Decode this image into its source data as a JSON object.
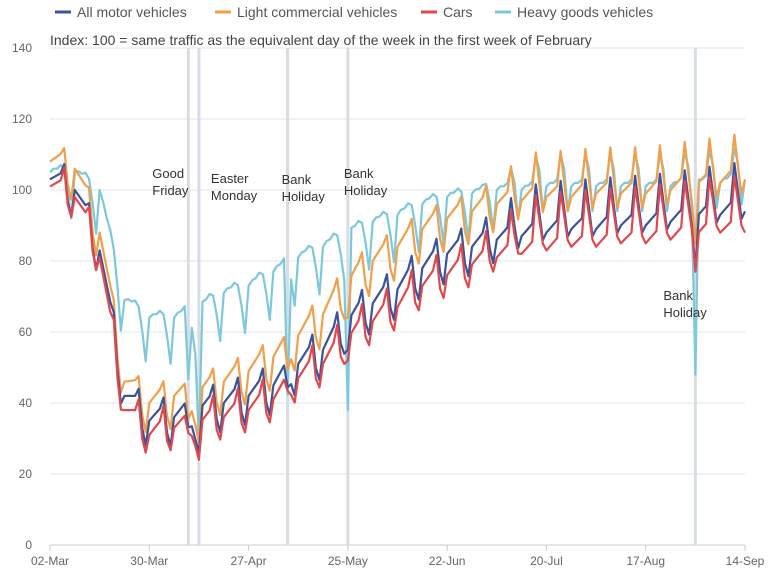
{
  "chart_data": {
    "type": "line",
    "subtitle": "Index: 100 = same traffic as the equivalent day of the week in the first week of February",
    "ylim": [
      0,
      140
    ],
    "yticks": [
      0,
      20,
      40,
      60,
      80,
      100,
      120,
      140
    ],
    "x_start": "2020-03-02",
    "x_end": "2020-09-14",
    "xticks": [
      {
        "date": "2020-03-02",
        "label": "02-Mar"
      },
      {
        "date": "2020-03-30",
        "label": "30-Mar"
      },
      {
        "date": "2020-04-27",
        "label": "27-Apr"
      },
      {
        "date": "2020-05-25",
        "label": "25-May"
      },
      {
        "date": "2020-06-22",
        "label": "22-Jun"
      },
      {
        "date": "2020-07-20",
        "label": "20-Jul"
      },
      {
        "date": "2020-08-17",
        "label": "17-Aug"
      },
      {
        "date": "2020-09-14",
        "label": "14-Sep"
      }
    ],
    "grid": true,
    "legend": "top",
    "annotations": [
      {
        "date": "2020-04-10",
        "lines": [
          "Good",
          "Friday"
        ]
      },
      {
        "date": "2020-04-13",
        "lines": [
          "Easter",
          "Monday"
        ]
      },
      {
        "date": "2020-05-08",
        "lines": [
          "Bank",
          "Holiday"
        ]
      },
      {
        "date": "2020-05-25",
        "lines": [
          "Bank",
          "Holiday"
        ]
      },
      {
        "date": "2020-08-31",
        "lines": [
          "Bank",
          "Holiday"
        ]
      }
    ],
    "weekly": {
      "start": "2020-03-02",
      "dates": [
        "2020-03-02",
        "2020-03-09",
        "2020-03-16",
        "2020-03-23",
        "2020-03-30",
        "2020-04-06",
        "2020-04-13",
        "2020-04-20",
        "2020-04-27",
        "2020-05-04",
        "2020-05-11",
        "2020-05-18",
        "2020-05-25",
        "2020-06-01",
        "2020-06-08",
        "2020-06-15",
        "2020-06-22",
        "2020-06-29",
        "2020-07-06",
        "2020-07-13",
        "2020-07-20",
        "2020-07-27",
        "2020-08-03",
        "2020-08-10",
        "2020-08-17",
        "2020-08-24",
        "2020-08-31",
        "2020-09-07",
        "2020-09-14"
      ]
    },
    "weekly_levels": {
      "All motor vehicles": [
        103,
        100,
        83,
        42,
        35,
        36,
        38,
        40,
        42,
        45,
        51,
        55,
        63,
        68,
        72,
        78,
        82,
        84,
        86,
        87,
        88,
        89,
        89,
        90,
        90,
        91,
        92,
        93,
        94
      ],
      "Light commercial vehicles": [
        108,
        106,
        88,
        46,
        40,
        42,
        43,
        46,
        49,
        53,
        59,
        65,
        74,
        80,
        84,
        89,
        92,
        94,
        96,
        97,
        98,
        98,
        99,
        99,
        99,
        100,
        101,
        102,
        103
      ],
      "Cars": [
        101,
        98,
        81,
        38,
        31,
        33,
        34,
        36,
        38,
        41,
        47,
        51,
        58,
        63,
        67,
        73,
        76,
        79,
        81,
        82,
        83,
        84,
        84,
        85,
        85,
        86,
        87,
        88,
        88
      ],
      "Heavy goods vehicles": [
        104,
        104,
        99,
        68,
        63,
        63,
        66,
        70,
        72,
        76,
        80,
        83,
        87,
        90,
        92,
        95,
        97,
        98,
        99,
        99,
        100,
        100,
        100,
        100,
        100,
        100,
        101,
        101,
        102
      ]
    },
    "weekday_pattern": {
      "All motor vehicles": [
        0,
        1,
        2,
        3,
        6,
        -4,
        -8
      ],
      "Light commercial vehicles": [
        0,
        1,
        2,
        3,
        5,
        -5,
        -9
      ],
      "Cars": [
        0,
        1,
        2,
        3,
        7,
        -3,
        -6
      ],
      "Heavy goods vehicles": [
        1,
        2,
        2,
        3,
        2,
        -4,
        -12
      ]
    },
    "weekend_boost_summer": {
      "All motor vehicles": [
        0,
        0,
        0,
        0,
        8,
        10,
        6
      ],
      "Light commercial vehicles": [
        0,
        0,
        0,
        0,
        8,
        9,
        5
      ],
      "Cars": [
        0,
        0,
        0,
        0,
        9,
        12,
        8
      ],
      "Heavy goods vehicles": [
        0,
        0,
        0,
        0,
        8,
        10,
        6
      ]
    },
    "holiday_dips": {
      "2020-04-10": {
        "All motor vehicles": -10,
        "Light commercial vehicles": -12,
        "Cars": -9,
        "Heavy goods vehicles": -20
      },
      "2020-04-13": {
        "All motor vehicles": -12,
        "Light commercial vehicles": -14,
        "Cars": -10,
        "Heavy goods vehicles": -38
      },
      "2020-05-08": {
        "All motor vehicles": -10,
        "Light commercial vehicles": -12,
        "Cars": -8,
        "Heavy goods vehicles": -38
      },
      "2020-05-25": {
        "All motor vehicles": -8,
        "Light commercial vehicles": -10,
        "Cars": -6,
        "Heavy goods vehicles": -50
      },
      "2020-08-31": {
        "All motor vehicles": -14,
        "Light commercial vehicles": -16,
        "Cars": -10,
        "Heavy goods vehicles": -54
      }
    },
    "series": [
      {
        "name": "All motor vehicles",
        "color": "#3a539b"
      },
      {
        "name": "Light commercial vehicles",
        "color": "#f0a04b"
      },
      {
        "name": "Cars",
        "color": "#e0484e"
      },
      {
        "name": "Heavy goods vehicles",
        "color": "#7ec8dc"
      }
    ]
  }
}
